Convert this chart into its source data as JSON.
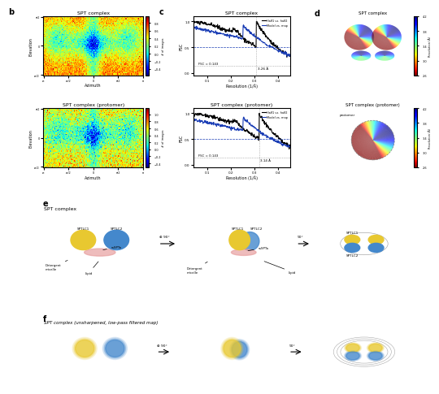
{
  "panel_b_top_title": "SPT complex",
  "panel_b_bottom_title": "SPT complex (protomer)",
  "panel_c_top_title": "SPT complex",
  "panel_c_bottom_title": "SPT complex (protomer)",
  "panel_d_top_title": "SPT complex",
  "panel_d_bottom_title": "SPT complex (protomer)",
  "panel_e_title": "SPT complex",
  "panel_f_title": "SPT complex (unsharpened, low-pass filtered map)",
  "fsc_xlabel": "Resolution (1/Å)",
  "fsc_ylabel": "FSC",
  "fsc_half1_label": "Half1 vs. half2",
  "fsc_model_label": "Model vs. map",
  "fsc_threshold_label": "FSC = 0.143",
  "fsc_top_resolution": "3.26 Å",
  "fsc_bottom_resolution": "3.14 Å",
  "fsc_threshold": 0.143,
  "fsc_half_threshold": 0.5,
  "azimuth_label": "Azimuth",
  "elevation_label": "Elevation",
  "colorbar_label": "# of images",
  "resolution_label": "Resolution (Å)",
  "resolution_ticks": [
    2.6,
    3.0,
    3.4,
    3.8,
    4.2
  ],
  "background_color": "#ffffff",
  "fsc_color_half": "#000000",
  "fsc_color_model": "#1a3db5",
  "annotation_color": "#888888",
  "yellow": "#E8C830",
  "blue": "#4488CC",
  "pink": "#E8A0A0"
}
